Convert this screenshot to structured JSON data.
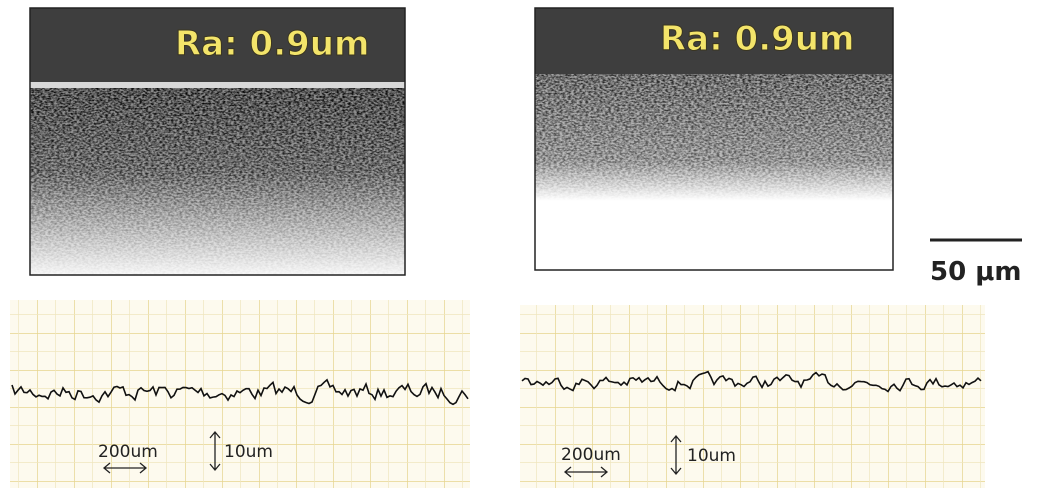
{
  "panels": [
    {
      "label": "Ra: 0.9um",
      "trace": {
        "horizontal_scale": "200um",
        "vertical_scale": "10um"
      }
    },
    {
      "label": "Ra: 0.9um",
      "trace": {
        "horizontal_scale": "200um",
        "vertical_scale": "10um"
      }
    }
  ],
  "scale_bar": "50 μm"
}
